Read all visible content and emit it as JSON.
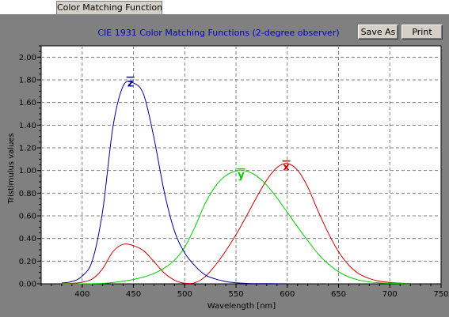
{
  "tab": {
    "label": "Color Matching Functions"
  },
  "buttons": {
    "save_as": "Save As",
    "print": "Print"
  },
  "chart_data": {
    "type": "line",
    "title": "CIE 1931 Color Matching Functions (2-degree observer)",
    "xlabel": "Wavelength [nm]",
    "ylabel": "Tristimulus values",
    "xlim": [
      360,
      750
    ],
    "ylim": [
      0,
      2.1
    ],
    "x_ticks": [
      400,
      450,
      500,
      550,
      600,
      650,
      700,
      750
    ],
    "y_ticks": [
      "0.00",
      "0.20",
      "0.40",
      "0.60",
      "0.80",
      "1.00",
      "1.20",
      "1.40",
      "1.60",
      "1.80",
      "2.00"
    ],
    "grid": true,
    "series": [
      {
        "name": "x",
        "color": "#cc0000",
        "x": [
          380,
          390,
          400,
          410,
          420,
          430,
          440,
          450,
          460,
          470,
          480,
          490,
          500,
          510,
          520,
          530,
          540,
          550,
          560,
          570,
          580,
          590,
          600,
          610,
          620,
          630,
          640,
          650,
          660,
          670,
          680,
          690,
          700,
          710,
          720
        ],
        "values": [
          0.0014,
          0.0042,
          0.0143,
          0.0435,
          0.1344,
          0.2839,
          0.3483,
          0.3362,
          0.2908,
          0.1954,
          0.0956,
          0.032,
          0.0049,
          0.0093,
          0.0633,
          0.1655,
          0.2904,
          0.4334,
          0.5945,
          0.7621,
          0.9163,
          1.0263,
          1.0622,
          1.0026,
          0.8544,
          0.6424,
          0.4479,
          0.2835,
          0.1649,
          0.0874,
          0.0468,
          0.0227,
          0.0114,
          0.0058,
          0.0029
        ]
      },
      {
        "name": "y",
        "color": "#00cc00",
        "x": [
          380,
          390,
          400,
          410,
          420,
          430,
          440,
          450,
          460,
          470,
          480,
          490,
          500,
          510,
          520,
          530,
          540,
          550,
          560,
          570,
          580,
          590,
          600,
          610,
          620,
          630,
          640,
          650,
          660,
          670,
          680,
          690,
          700,
          710,
          720
        ],
        "values": [
          0.0,
          0.0001,
          0.0004,
          0.0012,
          0.004,
          0.0116,
          0.023,
          0.038,
          0.06,
          0.091,
          0.139,
          0.208,
          0.323,
          0.503,
          0.71,
          0.862,
          0.954,
          0.995,
          0.995,
          0.952,
          0.87,
          0.757,
          0.631,
          0.503,
          0.381,
          0.265,
          0.175,
          0.107,
          0.061,
          0.032,
          0.017,
          0.0082,
          0.0041,
          0.0021,
          0.001
        ]
      },
      {
        "name": "z",
        "color": "#000099",
        "x": [
          380,
          390,
          400,
          410,
          420,
          430,
          440,
          450,
          460,
          470,
          480,
          490,
          500,
          510,
          520,
          530,
          540,
          550,
          560,
          570,
          580,
          590,
          600
        ],
        "values": [
          0.0065,
          0.0201,
          0.0679,
          0.2074,
          0.6456,
          1.3856,
          1.7471,
          1.7721,
          1.6692,
          1.2876,
          0.813,
          0.4652,
          0.272,
          0.1582,
          0.0782,
          0.0422,
          0.0203,
          0.0087,
          0.0039,
          0.0021,
          0.0017,
          0.0011,
          0.0008
        ]
      }
    ],
    "annotations": [
      {
        "text": "z",
        "series": "z",
        "x": 447,
        "y": 1.74
      },
      {
        "text": "y",
        "series": "y",
        "x": 555,
        "y": 0.93
      },
      {
        "text": "x",
        "series": "x",
        "x": 599,
        "y": 1.0
      }
    ]
  }
}
